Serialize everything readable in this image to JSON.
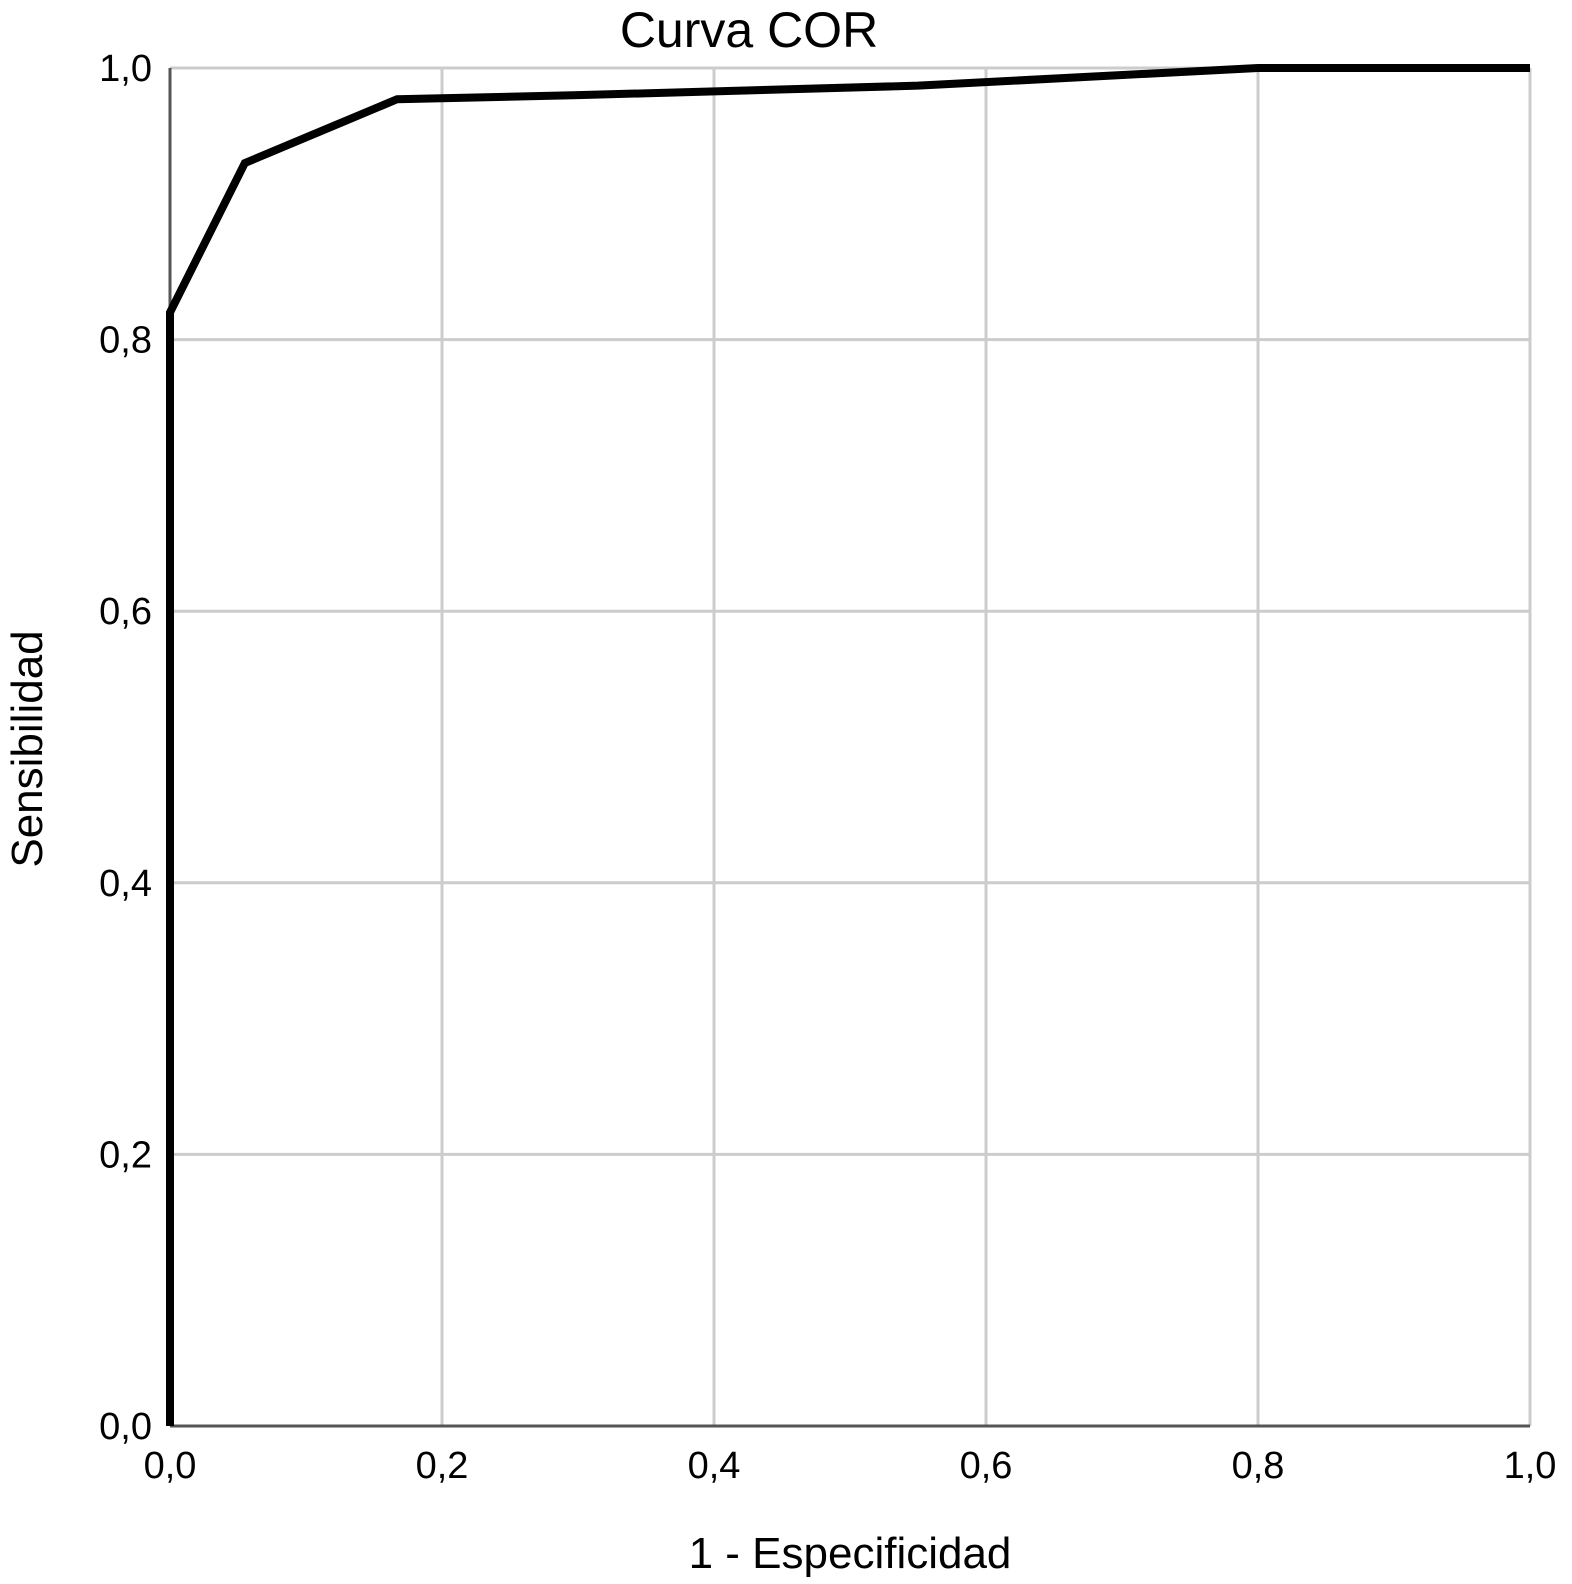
{
  "chart_data": {
    "type": "line",
    "title": "Curva COR",
    "xlabel": "1 - Especificidad",
    "ylabel": "Sensibilidad",
    "xlim": [
      0,
      1
    ],
    "ylim": [
      0,
      1
    ],
    "grid": true,
    "x_ticks": [
      0,
      0.2,
      0.4,
      0.6,
      0.8,
      1.0
    ],
    "y_ticks": [
      0,
      0.2,
      0.4,
      0.6,
      0.8,
      1.0
    ],
    "x_tick_labels": [
      "0,0",
      "0,2",
      "0,4",
      "0,6",
      "0,8",
      "1,0"
    ],
    "y_tick_labels": [
      "0,0",
      "0,2",
      "0,4",
      "0,6",
      "0,8",
      "1,0"
    ],
    "series": [
      {
        "color": "#000000",
        "x": [
          0.0,
          0.0,
          0.055,
          0.167,
          0.3,
          0.55,
          0.8,
          1.0
        ],
        "y": [
          0.0,
          0.82,
          0.93,
          0.977,
          0.98,
          0.987,
          1.0,
          1.0
        ]
      }
    ]
  },
  "colors": {
    "grid": "#cccccc",
    "axis": "#555555",
    "line": "#000000"
  }
}
